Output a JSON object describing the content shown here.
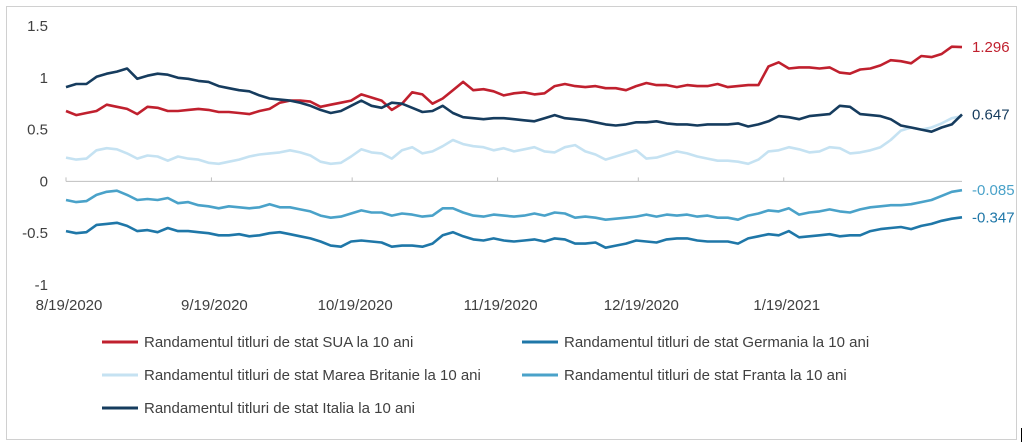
{
  "chart_data": {
    "type": "line",
    "title": "",
    "xlabel": "",
    "ylabel": "",
    "ylim": [
      -1,
      1.5
    ],
    "yticks": [
      "1.5",
      "1",
      "0.5",
      "0",
      "-0.5",
      "-1"
    ],
    "xticks": [
      "8/19/2020",
      "9/19/2020",
      "10/19/2020",
      "11/19/2020",
      "12/19/2020",
      "1/19/2021"
    ],
    "x_start": "8/19/2020",
    "x_end": "2/26/2021",
    "grid": false,
    "legend_position": "bottom",
    "series": [
      {
        "name": "Randamentul titluri de stat SUA la 10 ani",
        "color": "#c0202e",
        "end_label": "1.296",
        "values": [
          0.68,
          0.64,
          0.66,
          0.68,
          0.74,
          0.72,
          0.7,
          0.65,
          0.72,
          0.71,
          0.68,
          0.68,
          0.69,
          0.7,
          0.69,
          0.67,
          0.67,
          0.66,
          0.65,
          0.68,
          0.7,
          0.76,
          0.78,
          0.78,
          0.77,
          0.72,
          0.74,
          0.76,
          0.78,
          0.84,
          0.81,
          0.78,
          0.69,
          0.75,
          0.86,
          0.84,
          0.75,
          0.8,
          0.88,
          0.96,
          0.88,
          0.89,
          0.87,
          0.83,
          0.85,
          0.86,
          0.84,
          0.85,
          0.92,
          0.94,
          0.92,
          0.91,
          0.92,
          0.9,
          0.9,
          0.88,
          0.92,
          0.95,
          0.93,
          0.93,
          0.91,
          0.93,
          0.92,
          0.92,
          0.94,
          0.91,
          0.92,
          0.93,
          0.93,
          1.11,
          1.15,
          1.09,
          1.1,
          1.1,
          1.09,
          1.1,
          1.05,
          1.04,
          1.08,
          1.09,
          1.12,
          1.17,
          1.16,
          1.14,
          1.21,
          1.2,
          1.23,
          1.3,
          1.296
        ]
      },
      {
        "name": "Randamentul titluri de stat Germania la 10 ani",
        "color": "#1f77a8",
        "end_label": "-0.347",
        "values": [
          -0.48,
          -0.5,
          -0.49,
          -0.42,
          -0.41,
          -0.4,
          -0.43,
          -0.48,
          -0.47,
          -0.49,
          -0.45,
          -0.48,
          -0.48,
          -0.49,
          -0.5,
          -0.52,
          -0.52,
          -0.51,
          -0.53,
          -0.52,
          -0.5,
          -0.49,
          -0.51,
          -0.53,
          -0.55,
          -0.58,
          -0.62,
          -0.63,
          -0.58,
          -0.57,
          -0.58,
          -0.59,
          -0.63,
          -0.62,
          -0.62,
          -0.63,
          -0.6,
          -0.52,
          -0.49,
          -0.53,
          -0.56,
          -0.57,
          -0.55,
          -0.57,
          -0.58,
          -0.57,
          -0.56,
          -0.58,
          -0.55,
          -0.56,
          -0.6,
          -0.6,
          -0.59,
          -0.64,
          -0.62,
          -0.6,
          -0.57,
          -0.58,
          -0.59,
          -0.56,
          -0.55,
          -0.55,
          -0.57,
          -0.58,
          -0.58,
          -0.58,
          -0.6,
          -0.55,
          -0.53,
          -0.51,
          -0.52,
          -0.48,
          -0.54,
          -0.53,
          -0.52,
          -0.51,
          -0.53,
          -0.52,
          -0.52,
          -0.48,
          -0.46,
          -0.45,
          -0.44,
          -0.46,
          -0.43,
          -0.41,
          -0.38,
          -0.36,
          -0.347
        ]
      },
      {
        "name": "Randamentul titluri de stat Marea Britanie la 10 ani",
        "color": "#c5e2f2",
        "end_label": "",
        "values": [
          0.23,
          0.21,
          0.22,
          0.3,
          0.32,
          0.31,
          0.27,
          0.22,
          0.25,
          0.24,
          0.2,
          0.24,
          0.22,
          0.21,
          0.18,
          0.17,
          0.19,
          0.21,
          0.24,
          0.26,
          0.27,
          0.28,
          0.3,
          0.28,
          0.25,
          0.19,
          0.17,
          0.18,
          0.24,
          0.31,
          0.28,
          0.27,
          0.22,
          0.3,
          0.33,
          0.27,
          0.29,
          0.34,
          0.4,
          0.36,
          0.34,
          0.33,
          0.3,
          0.32,
          0.29,
          0.31,
          0.33,
          0.29,
          0.28,
          0.33,
          0.35,
          0.29,
          0.26,
          0.21,
          0.24,
          0.27,
          0.3,
          0.22,
          0.23,
          0.26,
          0.29,
          0.27,
          0.24,
          0.22,
          0.2,
          0.2,
          0.19,
          0.17,
          0.21,
          0.29,
          0.3,
          0.33,
          0.31,
          0.28,
          0.29,
          0.33,
          0.32,
          0.27,
          0.28,
          0.3,
          0.33,
          0.4,
          0.49,
          0.52,
          0.5,
          0.52,
          0.56,
          0.61,
          0.63
        ]
      },
      {
        "name": "Randamentul titluri de stat Franta la 10 ani",
        "color": "#4aa2c9",
        "end_label": "-0.085",
        "values": [
          -0.18,
          -0.2,
          -0.19,
          -0.13,
          -0.1,
          -0.09,
          -0.13,
          -0.18,
          -0.17,
          -0.18,
          -0.16,
          -0.21,
          -0.2,
          -0.23,
          -0.24,
          -0.26,
          -0.24,
          -0.25,
          -0.26,
          -0.25,
          -0.22,
          -0.25,
          -0.25,
          -0.27,
          -0.29,
          -0.33,
          -0.35,
          -0.34,
          -0.31,
          -0.28,
          -0.3,
          -0.3,
          -0.33,
          -0.31,
          -0.32,
          -0.34,
          -0.33,
          -0.26,
          -0.26,
          -0.3,
          -0.33,
          -0.34,
          -0.32,
          -0.33,
          -0.34,
          -0.33,
          -0.31,
          -0.33,
          -0.3,
          -0.31,
          -0.35,
          -0.34,
          -0.35,
          -0.37,
          -0.36,
          -0.35,
          -0.34,
          -0.32,
          -0.34,
          -0.32,
          -0.33,
          -0.32,
          -0.34,
          -0.33,
          -0.35,
          -0.35,
          -0.37,
          -0.33,
          -0.31,
          -0.28,
          -0.29,
          -0.26,
          -0.32,
          -0.3,
          -0.29,
          -0.27,
          -0.29,
          -0.3,
          -0.27,
          -0.25,
          -0.24,
          -0.23,
          -0.23,
          -0.22,
          -0.2,
          -0.18,
          -0.14,
          -0.1,
          -0.085
        ]
      },
      {
        "name": "Randamentul titluri de stat Italia la 10 ani",
        "color": "#163c5e",
        "end_label": "0.647",
        "values": [
          0.91,
          0.94,
          0.94,
          1.01,
          1.04,
          1.06,
          1.09,
          0.99,
          1.02,
          1.04,
          1.03,
          1.0,
          0.99,
          0.97,
          0.96,
          0.92,
          0.9,
          0.88,
          0.87,
          0.83,
          0.8,
          0.79,
          0.78,
          0.76,
          0.73,
          0.69,
          0.66,
          0.68,
          0.73,
          0.78,
          0.73,
          0.71,
          0.76,
          0.75,
          0.71,
          0.67,
          0.68,
          0.73,
          0.66,
          0.62,
          0.61,
          0.6,
          0.61,
          0.61,
          0.6,
          0.59,
          0.58,
          0.61,
          0.64,
          0.61,
          0.6,
          0.59,
          0.57,
          0.55,
          0.54,
          0.55,
          0.57,
          0.57,
          0.58,
          0.56,
          0.55,
          0.55,
          0.54,
          0.55,
          0.55,
          0.55,
          0.56,
          0.53,
          0.55,
          0.58,
          0.63,
          0.62,
          0.6,
          0.63,
          0.64,
          0.65,
          0.73,
          0.72,
          0.65,
          0.64,
          0.63,
          0.6,
          0.54,
          0.52,
          0.5,
          0.48,
          0.52,
          0.55,
          0.647
        ]
      }
    ]
  }
}
